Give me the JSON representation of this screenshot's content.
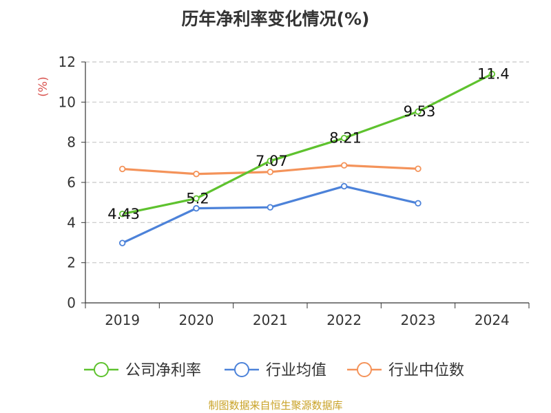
{
  "chart_data": {
    "type": "line",
    "title": "历年净利率变化情况(%)",
    "ylabel": "(%)",
    "ylim": [
      0,
      12
    ],
    "yticks": [
      0,
      2,
      4,
      6,
      8,
      10,
      12
    ],
    "categories": [
      "2019",
      "2020",
      "2021",
      "2022",
      "2023",
      "2024"
    ],
    "grid": true,
    "legend_position": "bottom",
    "series": [
      {
        "name": "公司净利率",
        "color": "#5ec22e",
        "values": [
          4.43,
          5.2,
          7.07,
          8.21,
          9.53,
          11.4
        ],
        "labels": [
          "4.43",
          "5.2",
          "7.07",
          "8.21",
          "9.53",
          "11.4"
        ]
      },
      {
        "name": "行业均值",
        "color": "#4c82d9",
        "values": [
          2.98,
          4.71,
          4.76,
          5.81,
          4.96,
          null
        ]
      },
      {
        "name": "行业中位数",
        "color": "#f4935a",
        "values": [
          6.67,
          6.42,
          6.52,
          6.85,
          6.68,
          null
        ]
      }
    ]
  },
  "source": "制图数据来自恒生聚源数据库"
}
